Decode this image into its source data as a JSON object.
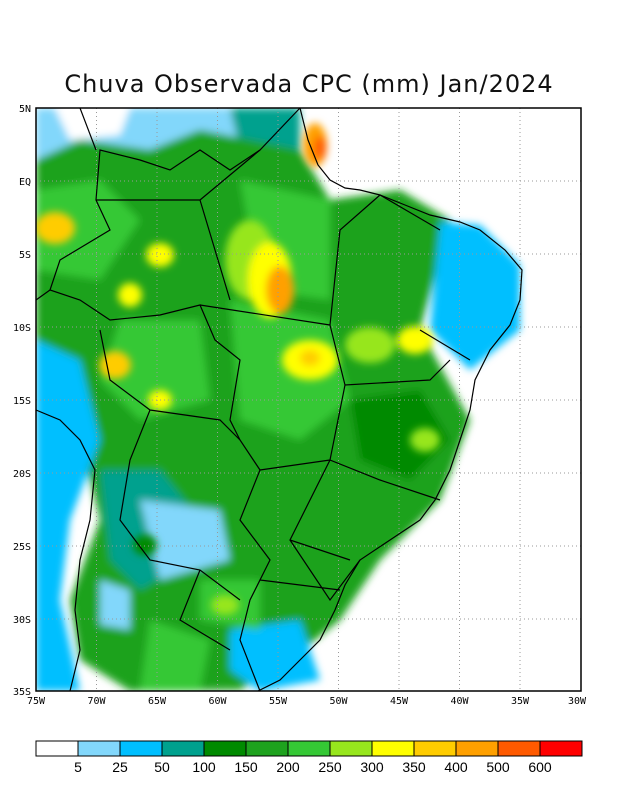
{
  "title": "Chuva Observada CPC (mm) Jan/2024",
  "map": {
    "lat_ticks": [
      "5N",
      "EQ",
      "5S",
      "10S",
      "15S",
      "20S",
      "25S",
      "30S",
      "35S"
    ],
    "lon_ticks": [
      "75W",
      "70W",
      "65W",
      "60W",
      "55W",
      "50W",
      "45W",
      "40W",
      "35W",
      "30W"
    ],
    "extent": {
      "lon": [
        -75,
        -30
      ],
      "lat": [
        -35,
        5
      ]
    }
  },
  "colorbar": {
    "labels": [
      "5",
      "25",
      "50",
      "100",
      "150",
      "200",
      "250",
      "300",
      "350",
      "400",
      "500",
      "600"
    ],
    "colors": [
      "#ffffff",
      "#82d7fb",
      "#00bfff",
      "#00a18e",
      "#008a00",
      "#1ea21e",
      "#35c835",
      "#97e61d",
      "#ffff00",
      "#ffcc00",
      "#ffa000",
      "#ff5a00",
      "#ff0000"
    ]
  }
}
